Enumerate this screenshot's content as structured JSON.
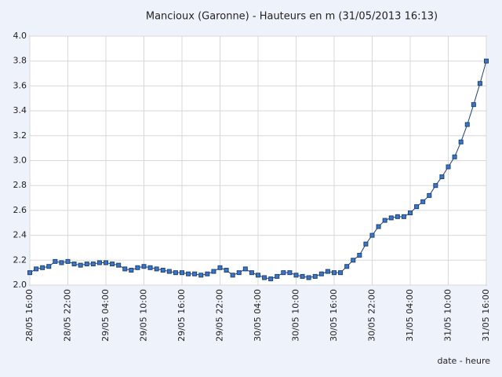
{
  "chart_data": {
    "type": "line",
    "title": "Mancioux (Garonne) - Hauteurs en m (31/05/2013 16:13)",
    "x_label": "date - heure",
    "categories": [
      "28/05 16:00",
      null,
      null,
      null,
      null,
      null,
      "28/05 22:00",
      null,
      null,
      null,
      null,
      null,
      "29/05 04:00",
      null,
      null,
      null,
      null,
      null,
      "29/05 10:00",
      null,
      null,
      null,
      null,
      null,
      "29/05 16:00",
      null,
      null,
      null,
      null,
      null,
      "29/05 22:00",
      null,
      null,
      null,
      null,
      null,
      "30/05 04:00",
      null,
      null,
      null,
      null,
      null,
      "30/05 10:00",
      null,
      null,
      null,
      null,
      null,
      "30/05 16:00",
      null,
      null,
      null,
      null,
      null,
      "30/05 22:00",
      null,
      null,
      null,
      null,
      null,
      "31/05 04:00",
      null,
      null,
      null,
      null,
      null,
      "31/05 10:00",
      null,
      null,
      null,
      null,
      null,
      "31/05 16:00"
    ],
    "values": [
      2.1,
      2.13,
      2.14,
      2.15,
      2.19,
      2.18,
      2.19,
      2.17,
      2.16,
      2.17,
      2.17,
      2.18,
      2.18,
      2.17,
      2.16,
      2.13,
      2.12,
      2.14,
      2.15,
      2.14,
      2.13,
      2.12,
      2.11,
      2.1,
      2.1,
      2.09,
      2.09,
      2.08,
      2.09,
      2.11,
      2.14,
      2.12,
      2.08,
      2.1,
      2.13,
      2.1,
      2.08,
      2.06,
      2.05,
      2.07,
      2.1,
      2.1,
      2.08,
      2.07,
      2.06,
      2.07,
      2.09,
      2.11,
      2.1,
      2.1,
      2.15,
      2.2,
      2.24,
      2.33,
      2.4,
      2.47,
      2.52,
      2.54,
      2.55,
      2.55,
      2.58,
      2.63,
      2.67,
      2.72,
      2.8,
      2.87,
      2.95,
      3.03,
      3.15,
      3.29,
      3.45,
      3.62,
      3.8
    ],
    "color": "#3a78c0",
    "line_color": "#1f3f80",
    "ylim": [
      2,
      4
    ],
    "yticks": [
      {
        "value": 2,
        "label": "2.0"
      },
      2.2,
      2.4,
      2.6,
      2.8,
      {
        "value": 3,
        "label": "3.0"
      },
      3.2,
      3.4,
      3.6,
      3.8,
      {
        "value": 4,
        "label": "4.0"
      }
    ],
    "grid": true
  }
}
